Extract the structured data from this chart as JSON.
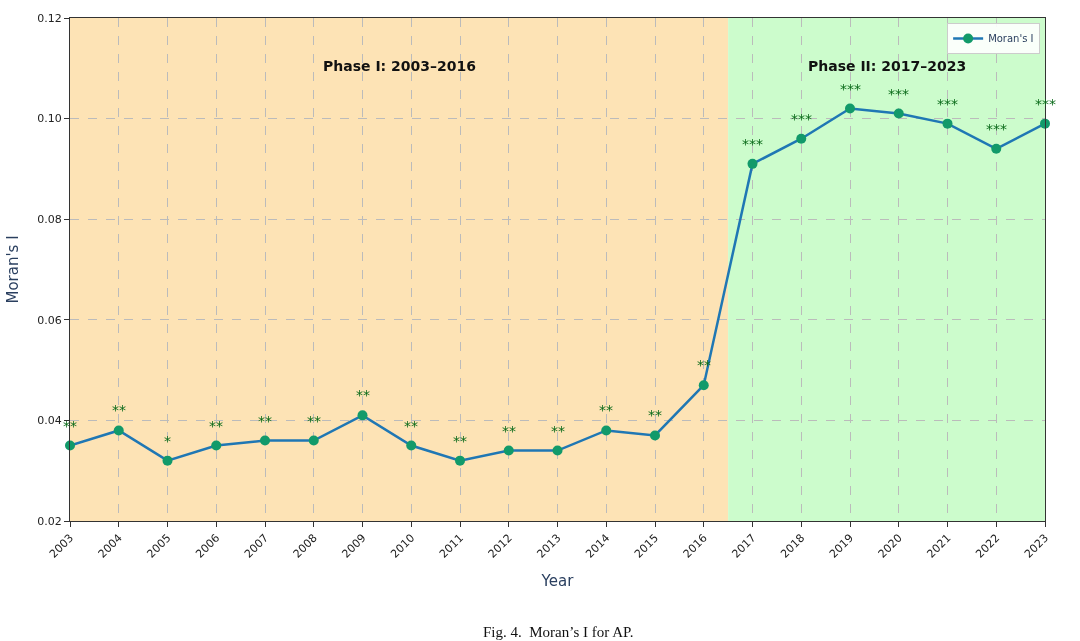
{
  "chart_data": {
    "type": "line",
    "xlabel": "Year",
    "ylabel": "Moran's I",
    "x": [
      2003,
      2004,
      2005,
      2006,
      2007,
      2008,
      2009,
      2010,
      2011,
      2012,
      2013,
      2014,
      2015,
      2016,
      2017,
      2018,
      2019,
      2020,
      2021,
      2022,
      2023
    ],
    "series": [
      {
        "name": "Moran's I",
        "color": "#1f77b4",
        "values": [
          0.035,
          0.038,
          0.032,
          0.035,
          0.036,
          0.036,
          0.041,
          0.035,
          0.032,
          0.034,
          0.034,
          0.038,
          0.037,
          0.047,
          0.091,
          0.096,
          0.102,
          0.101,
          0.099,
          0.094,
          0.099
        ]
      }
    ],
    "xlim": [
      2003,
      2023
    ],
    "xticks": [
      2003,
      2004,
      2005,
      2006,
      2007,
      2008,
      2009,
      2010,
      2011,
      2012,
      2013,
      2014,
      2015,
      2016,
      2017,
      2018,
      2019,
      2020,
      2021,
      2022,
      2023
    ],
    "ylim": [
      0.02,
      0.12
    ],
    "yticks": [
      0.02,
      0.04,
      0.06,
      0.08,
      {
        "value": 0.1,
        "label": "0.10"
      },
      0.12
    ],
    "bands": [
      {
        "axis": "x",
        "from": 2003,
        "to": 2016.5,
        "label": "Phase I: 2003–2016",
        "color": "#fde3b5"
      },
      {
        "axis": "x",
        "from": 2016.5,
        "to": 2023,
        "label": "Phase II: 2017–2023",
        "color": "#ccfccc"
      }
    ],
    "annotations": [
      {
        "text": "**",
        "x": 2003,
        "y": 0.035
      },
      {
        "text": "**",
        "x": 2004,
        "y": 0.038
      },
      {
        "text": "*",
        "x": 2005,
        "y": 0.032
      },
      {
        "text": "**",
        "x": 2006,
        "y": 0.035
      },
      {
        "text": "**",
        "x": 2007,
        "y": 0.036
      },
      {
        "text": "**",
        "x": 2008,
        "y": 0.036
      },
      {
        "text": "**",
        "x": 2009,
        "y": 0.041
      },
      {
        "text": "**",
        "x": 2010,
        "y": 0.035
      },
      {
        "text": "**",
        "x": 2011,
        "y": 0.032
      },
      {
        "text": "**",
        "x": 2012,
        "y": 0.034
      },
      {
        "text": "**",
        "x": 2013,
        "y": 0.034
      },
      {
        "text": "**",
        "x": 2014,
        "y": 0.038
      },
      {
        "text": "**",
        "x": 2015,
        "y": 0.037
      },
      {
        "text": "**",
        "x": 2016,
        "y": 0.047
      },
      {
        "text": "***",
        "x": 2017,
        "y": 0.091
      },
      {
        "text": "***",
        "x": 2018,
        "y": 0.096
      },
      {
        "text": "***",
        "x": 2019,
        "y": 0.102
      },
      {
        "text": "***",
        "x": 2020,
        "y": 0.101
      },
      {
        "text": "***",
        "x": 2021,
        "y": 0.099
      },
      {
        "text": "***",
        "x": 2022,
        "y": 0.094
      },
      {
        "text": "***",
        "x": 2023,
        "y": 0.099
      },
      "Fig. 4.  Moran’s I for AP."
    ],
    "legend": "top right",
    "grid": true,
    "marker": "circle",
    "line_style": "solid"
  }
}
